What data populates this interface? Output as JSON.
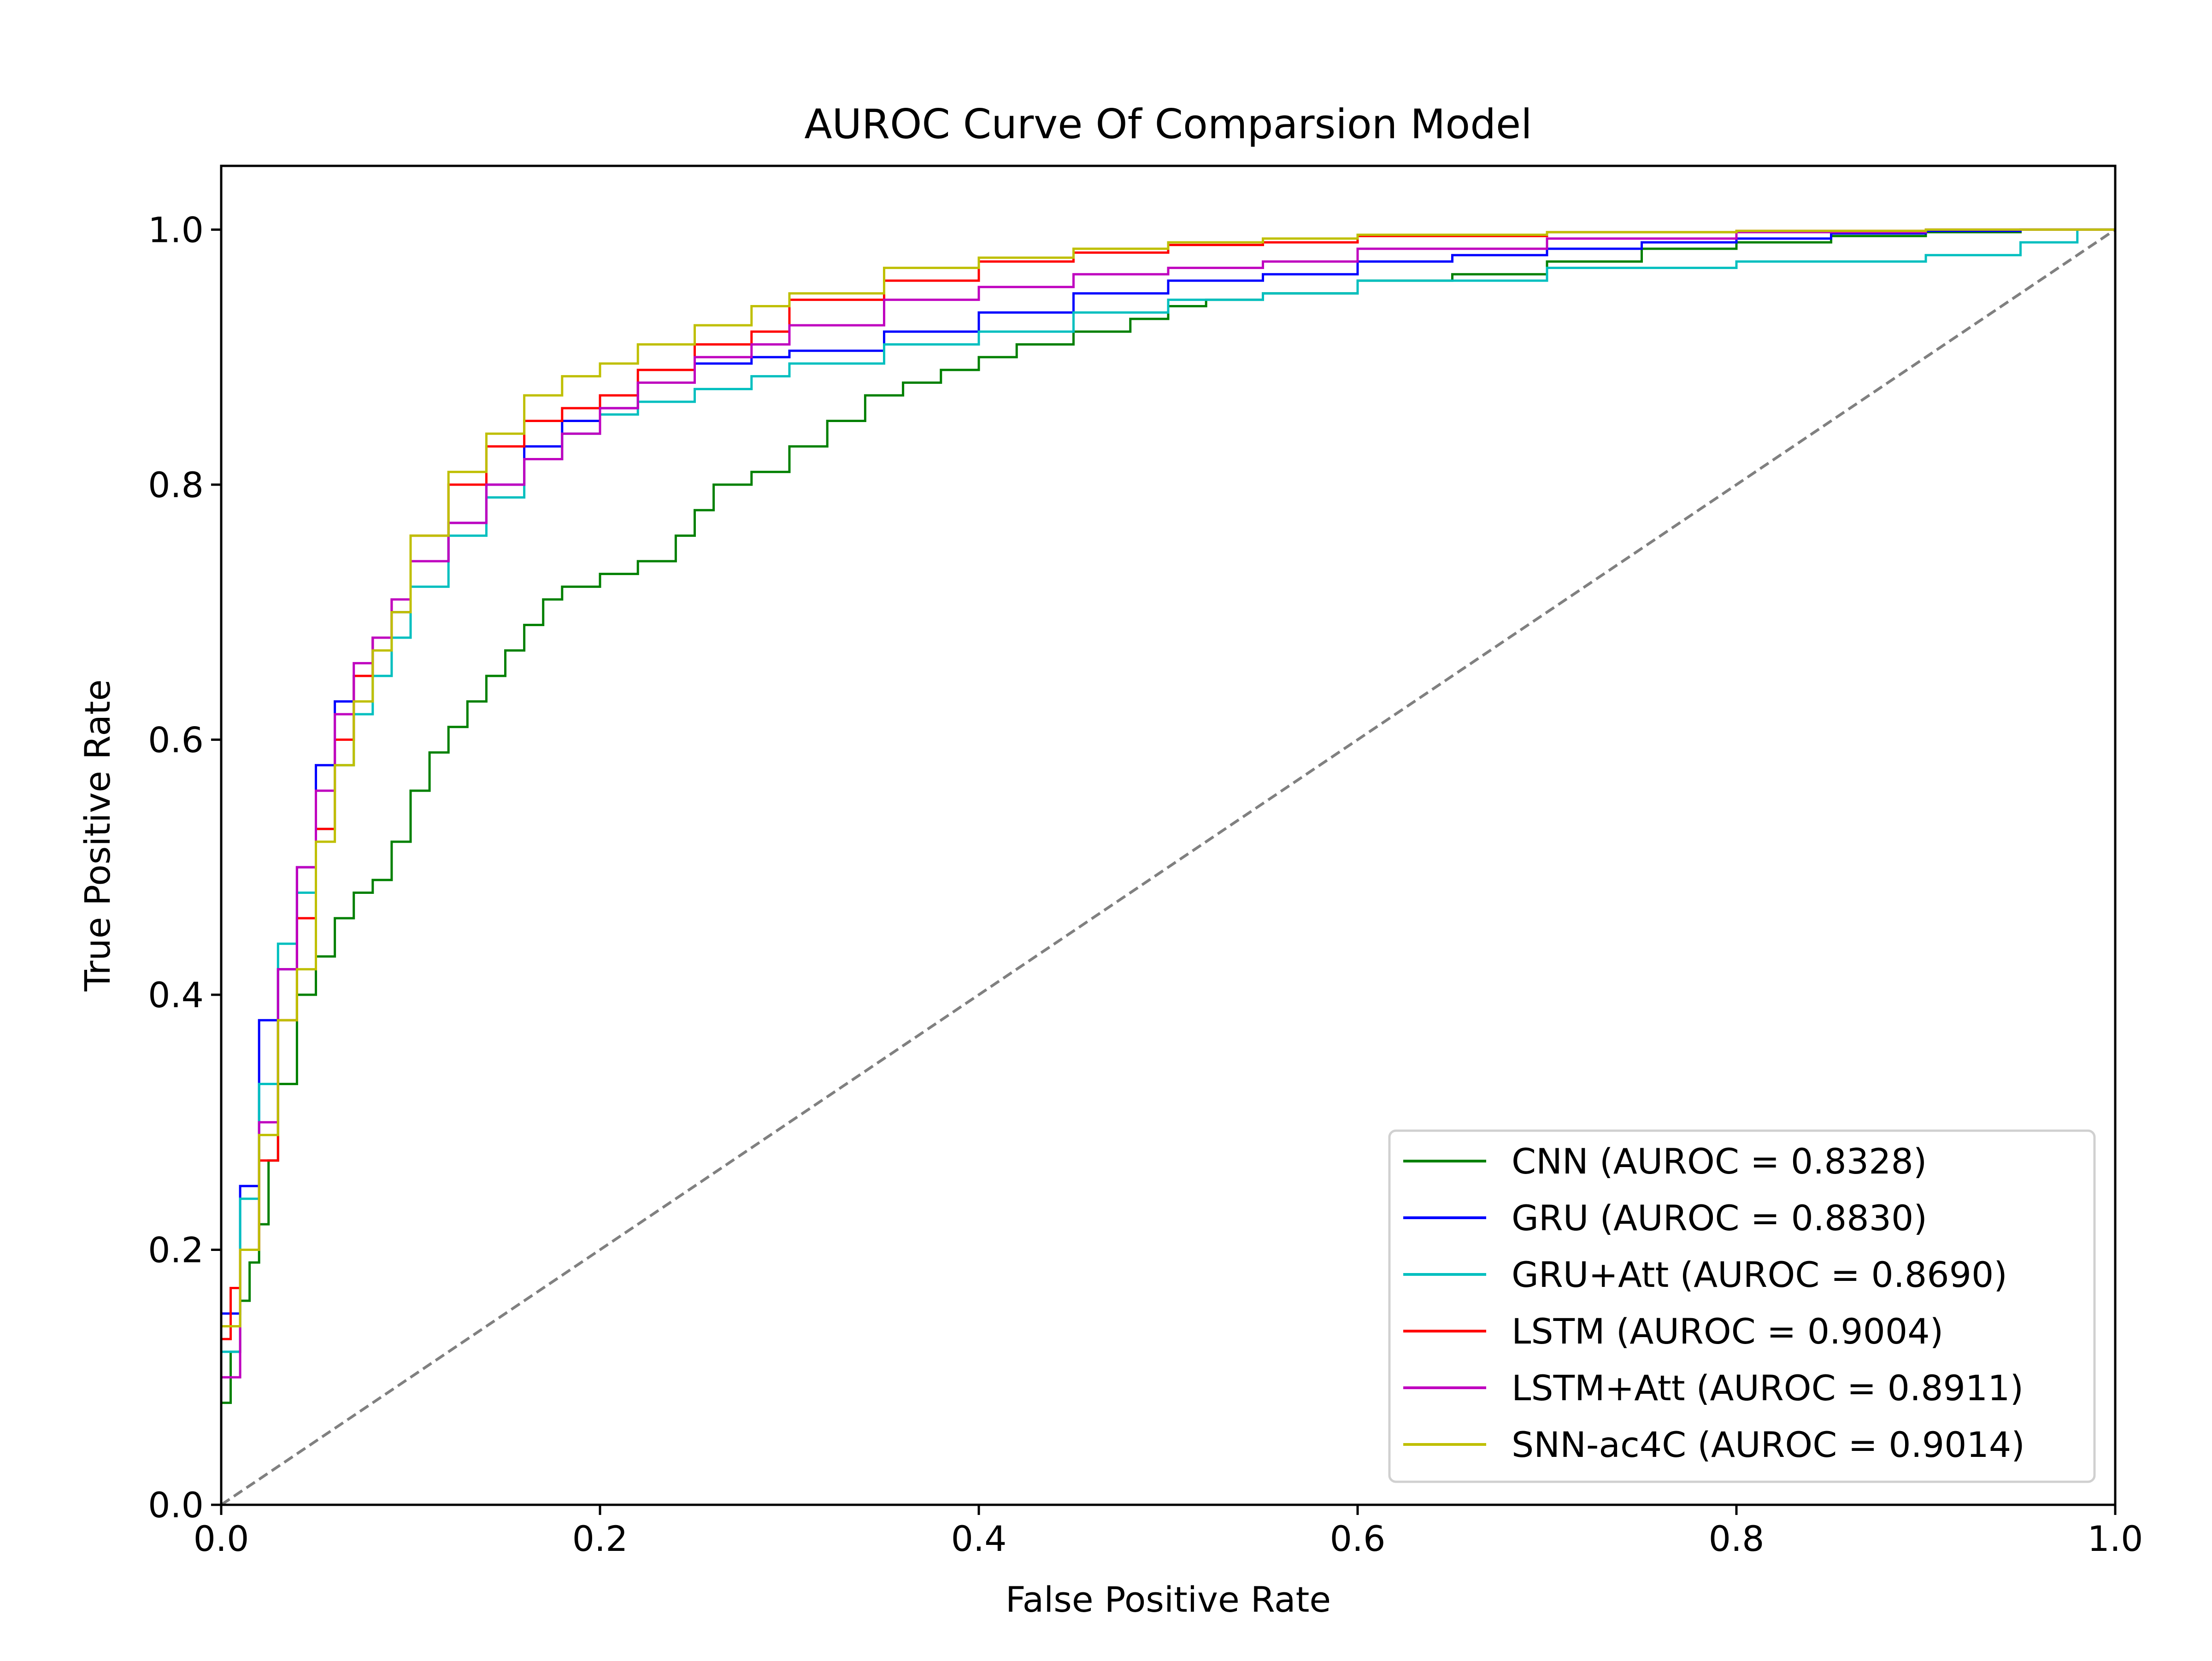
{
  "chart_data": {
    "type": "line",
    "title": "AUROC Curve Of Comparsion Model",
    "xlabel": "False Positive Rate",
    "ylabel": "True Positive Rate",
    "xlim": [
      0.0,
      1.0
    ],
    "ylim": [
      0.0,
      1.05
    ],
    "xticks": [
      "0.0",
      "0.2",
      "0.4",
      "0.6",
      "0.8",
      "1.0"
    ],
    "yticks": [
      "0.0",
      "0.2",
      "0.4",
      "0.6",
      "0.8",
      "1.0"
    ],
    "grid": false,
    "legend_position": "lower-right",
    "reference_line": {
      "x": [
        0,
        1
      ],
      "y": [
        0,
        1
      ],
      "color": "#808080",
      "style": "dashed"
    },
    "series": [
      {
        "name": "CNN (AUROC = 0.8328)",
        "color": "#008000",
        "x": [
          0,
          0.005,
          0.01,
          0.015,
          0.02,
          0.025,
          0.03,
          0.04,
          0.05,
          0.06,
          0.07,
          0.08,
          0.09,
          0.1,
          0.11,
          0.12,
          0.13,
          0.14,
          0.15,
          0.16,
          0.17,
          0.18,
          0.2,
          0.22,
          0.24,
          0.25,
          0.26,
          0.28,
          0.3,
          0.32,
          0.34,
          0.36,
          0.38,
          0.4,
          0.42,
          0.45,
          0.48,
          0.5,
          0.52,
          0.55,
          0.6,
          0.65,
          0.7,
          0.75,
          0.8,
          0.85,
          0.9,
          0.95,
          1.0
        ],
        "y": [
          0,
          0.08,
          0.12,
          0.16,
          0.19,
          0.22,
          0.27,
          0.33,
          0.4,
          0.43,
          0.46,
          0.48,
          0.49,
          0.52,
          0.56,
          0.59,
          0.61,
          0.63,
          0.65,
          0.67,
          0.69,
          0.71,
          0.72,
          0.73,
          0.74,
          0.76,
          0.78,
          0.8,
          0.81,
          0.83,
          0.85,
          0.87,
          0.88,
          0.89,
          0.9,
          0.91,
          0.92,
          0.93,
          0.94,
          0.945,
          0.95,
          0.96,
          0.965,
          0.975,
          0.985,
          0.99,
          0.995,
          0.998,
          1.0
        ]
      },
      {
        "name": "GRU (AUROC = 0.8830)",
        "color": "#0000ff",
        "x": [
          0,
          0.01,
          0.02,
          0.03,
          0.04,
          0.05,
          0.06,
          0.07,
          0.08,
          0.09,
          0.1,
          0.12,
          0.14,
          0.16,
          0.18,
          0.2,
          0.22,
          0.25,
          0.28,
          0.3,
          0.35,
          0.4,
          0.45,
          0.5,
          0.55,
          0.6,
          0.65,
          0.7,
          0.75,
          0.8,
          0.85,
          0.9,
          0.95,
          1.0
        ],
        "y": [
          0,
          0.15,
          0.25,
          0.38,
          0.42,
          0.5,
          0.58,
          0.63,
          0.65,
          0.68,
          0.7,
          0.74,
          0.77,
          0.8,
          0.83,
          0.85,
          0.86,
          0.88,
          0.895,
          0.9,
          0.905,
          0.92,
          0.935,
          0.95,
          0.96,
          0.965,
          0.975,
          0.98,
          0.985,
          0.99,
          0.993,
          0.997,
          0.999,
          1.0
        ]
      },
      {
        "name": "GRU+Att (AUROC = 0.8690)",
        "color": "#00bfbf",
        "x": [
          0,
          0.01,
          0.02,
          0.03,
          0.04,
          0.05,
          0.06,
          0.07,
          0.08,
          0.09,
          0.1,
          0.12,
          0.14,
          0.16,
          0.18,
          0.2,
          0.22,
          0.25,
          0.28,
          0.3,
          0.35,
          0.4,
          0.45,
          0.5,
          0.55,
          0.6,
          0.7,
          0.8,
          0.9,
          0.95,
          0.98,
          1.0
        ],
        "y": [
          0,
          0.12,
          0.24,
          0.33,
          0.44,
          0.48,
          0.53,
          0.58,
          0.62,
          0.65,
          0.68,
          0.72,
          0.76,
          0.79,
          0.82,
          0.84,
          0.855,
          0.865,
          0.875,
          0.885,
          0.895,
          0.91,
          0.92,
          0.935,
          0.945,
          0.95,
          0.96,
          0.97,
          0.975,
          0.98,
          0.99,
          1.0
        ]
      },
      {
        "name": "LSTM (AUROC = 0.9004)",
        "color": "#ff0000",
        "x": [
          0,
          0.005,
          0.01,
          0.02,
          0.03,
          0.04,
          0.05,
          0.06,
          0.07,
          0.08,
          0.09,
          0.1,
          0.12,
          0.14,
          0.16,
          0.18,
          0.2,
          0.22,
          0.25,
          0.28,
          0.3,
          0.35,
          0.4,
          0.45,
          0.5,
          0.55,
          0.6,
          0.7,
          0.8,
          0.9,
          1.0
        ],
        "y": [
          0,
          0.13,
          0.17,
          0.2,
          0.27,
          0.38,
          0.46,
          0.53,
          0.6,
          0.65,
          0.68,
          0.71,
          0.76,
          0.8,
          0.83,
          0.85,
          0.86,
          0.87,
          0.89,
          0.91,
          0.92,
          0.945,
          0.96,
          0.975,
          0.982,
          0.988,
          0.99,
          0.995,
          0.998,
          0.999,
          1.0
        ]
      },
      {
        "name": "LSTM+Att (AUROC = 0.8911)",
        "color": "#bf00bf",
        "x": [
          0,
          0.01,
          0.02,
          0.03,
          0.04,
          0.05,
          0.06,
          0.07,
          0.08,
          0.09,
          0.1,
          0.12,
          0.14,
          0.16,
          0.18,
          0.2,
          0.22,
          0.25,
          0.28,
          0.3,
          0.35,
          0.4,
          0.45,
          0.5,
          0.55,
          0.6,
          0.7,
          0.8,
          0.9,
          1.0
        ],
        "y": [
          0,
          0.1,
          0.2,
          0.3,
          0.42,
          0.5,
          0.56,
          0.62,
          0.66,
          0.68,
          0.71,
          0.74,
          0.77,
          0.8,
          0.82,
          0.84,
          0.86,
          0.88,
          0.9,
          0.91,
          0.925,
          0.945,
          0.955,
          0.965,
          0.97,
          0.975,
          0.985,
          0.993,
          0.998,
          1.0
        ]
      },
      {
        "name": "SNN-ac4C (AUROC = 0.9014)",
        "color": "#bfbf00",
        "x": [
          0,
          0.01,
          0.02,
          0.03,
          0.04,
          0.05,
          0.06,
          0.07,
          0.08,
          0.09,
          0.1,
          0.12,
          0.14,
          0.16,
          0.18,
          0.2,
          0.22,
          0.25,
          0.28,
          0.3,
          0.35,
          0.4,
          0.45,
          0.5,
          0.55,
          0.6,
          0.7,
          0.8,
          0.9,
          1.0
        ],
        "y": [
          0,
          0.14,
          0.2,
          0.29,
          0.38,
          0.42,
          0.52,
          0.58,
          0.63,
          0.67,
          0.7,
          0.76,
          0.81,
          0.84,
          0.87,
          0.885,
          0.895,
          0.91,
          0.925,
          0.94,
          0.95,
          0.97,
          0.978,
          0.985,
          0.99,
          0.993,
          0.996,
          0.998,
          0.999,
          1.0
        ]
      }
    ]
  }
}
